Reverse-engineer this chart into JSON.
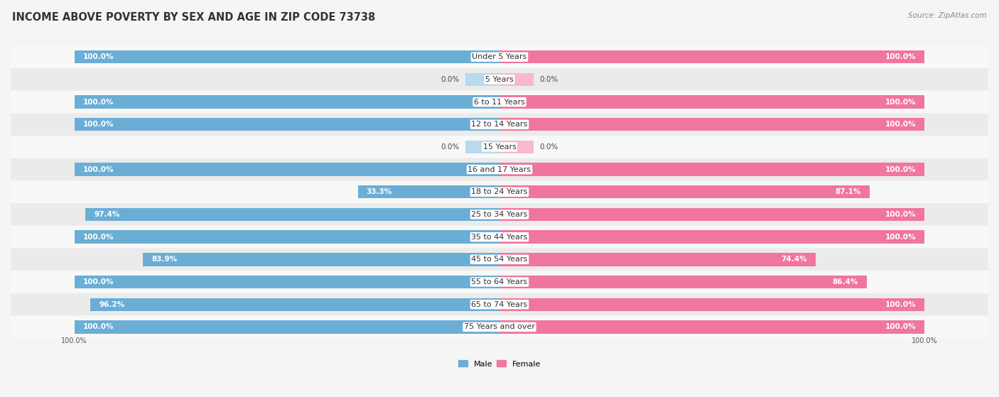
{
  "title": "INCOME ABOVE POVERTY BY SEX AND AGE IN ZIP CODE 73738",
  "source": "Source: ZipAtlas.com",
  "categories": [
    "Under 5 Years",
    "5 Years",
    "6 to 11 Years",
    "12 to 14 Years",
    "15 Years",
    "16 and 17 Years",
    "18 to 24 Years",
    "25 to 34 Years",
    "35 to 44 Years",
    "45 to 54 Years",
    "55 to 64 Years",
    "65 to 74 Years",
    "75 Years and over"
  ],
  "male_values": [
    100.0,
    0.0,
    100.0,
    100.0,
    0.0,
    100.0,
    33.3,
    97.4,
    100.0,
    83.9,
    100.0,
    96.2,
    100.0
  ],
  "female_values": [
    100.0,
    0.0,
    100.0,
    100.0,
    0.0,
    100.0,
    87.1,
    100.0,
    100.0,
    74.4,
    86.4,
    100.0,
    100.0
  ],
  "male_color": "#6aaed6",
  "female_color": "#f075a0",
  "male_color_light": "#b8d9ee",
  "female_color_light": "#f8b8ce",
  "male_label": "Male",
  "female_label": "Female",
  "row_color_odd": "#f2f2f2",
  "row_color_even": "#e8e8e8",
  "bg_color": "#f5f5f5",
  "bar_height": 0.58,
  "figsize": [
    14.06,
    5.59
  ],
  "dpi": 100,
  "title_fontsize": 10.5,
  "label_fontsize": 8,
  "value_fontsize": 7.5,
  "source_fontsize": 7.5
}
